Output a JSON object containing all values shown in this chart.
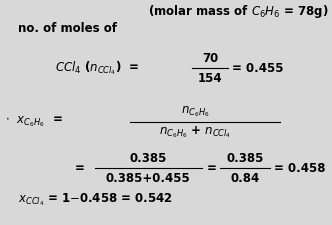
{
  "background_color": "#d8d8d8",
  "text_color": "#000000",
  "figsize": [
    3.32,
    2.25
  ],
  "dpi": 100,
  "fs": 8.5
}
